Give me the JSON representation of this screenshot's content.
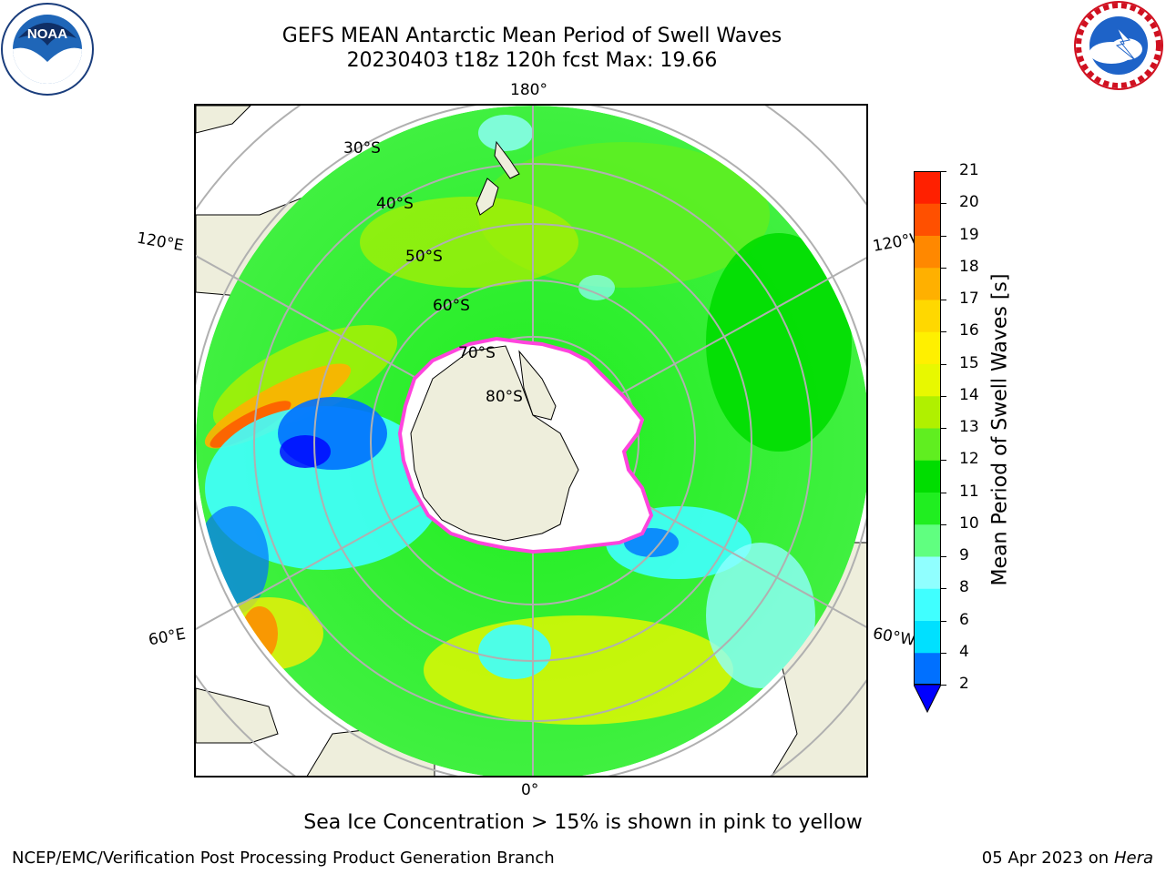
{
  "header": {
    "title_line1": "GEFS MEAN Antarctic Mean Period of Swell Waves",
    "title_line2": "20230403 t18z 120h fcst   Max: 19.66"
  },
  "logos": {
    "left": "noaa-logo",
    "right": "national-weather-service-logo",
    "left_text": "NOAA"
  },
  "map": {
    "projection": "south-polar-stereographic",
    "lon_labels": [
      "180°",
      "120°E",
      "120°W",
      "60°E",
      "60°W",
      "0°"
    ],
    "lat_labels": [
      "30°S",
      "40°S",
      "50°S",
      "60°S",
      "70°S",
      "80°S"
    ],
    "colors": {
      "land": "#eeeedc",
      "ice": "#ffffff",
      "ice_edge": "#ff44dd",
      "grid": "#b0b0b0"
    }
  },
  "colorbar": {
    "label": "Mean Period of Swell Waves [s]",
    "levels": [
      2,
      4,
      6,
      8,
      9,
      10,
      11,
      12,
      13,
      14,
      15,
      16,
      17,
      18,
      19,
      20,
      21
    ],
    "colors": [
      "#0070ff",
      "#00e0ff",
      "#40ffff",
      "#90ffff",
      "#60ff80",
      "#20ee20",
      "#00dd00",
      "#60ee20",
      "#b0f000",
      "#e8f800",
      "#fff000",
      "#ffd800",
      "#ffb000",
      "#ff8800",
      "#ff5000",
      "#ff2000"
    ],
    "extend_color": "#0000ff"
  },
  "note": "Sea Ice Concentration > 15% is shown in pink to yellow",
  "footer": {
    "left": "NCEP/EMC/Verification Post Processing Product Generation Branch",
    "date": "05 Apr 2023 on ",
    "host": "Hera"
  }
}
